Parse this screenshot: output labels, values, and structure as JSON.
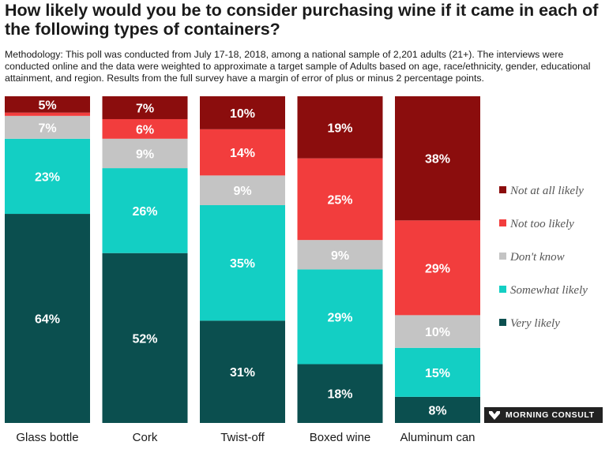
{
  "title": "How likely would you be to consider purchasing wine if it came in each of the following types of containers?",
  "methodology": "Methodology: This poll was conducted from July 17-18, 2018, among a national sample of 2,201 adults (21+). The interviews were conducted online and the data were weighted to approximate a target sample of Adults based on age, race/ethnicity, gender, educational attainment, and region. Results from the full survey have a margin of error of plus or minus 2 percentage points.",
  "brand": "MORNING CONSULT",
  "chart_data": {
    "type": "bar",
    "stacked": true,
    "percent": true,
    "categories": [
      "Glass bottle",
      "Cork",
      "Twist-off",
      "Boxed wine",
      "Aluminum can"
    ],
    "series": [
      {
        "name": "Very likely",
        "color": "#0b4f4f",
        "values": [
          64,
          52,
          31,
          18,
          8
        ]
      },
      {
        "name": "Somewhat likely",
        "color": "#13cfc4",
        "values": [
          23,
          26,
          35,
          29,
          15
        ]
      },
      {
        "name": "Don't know",
        "color": "#c4c4c4",
        "values": [
          7,
          9,
          9,
          9,
          10
        ]
      },
      {
        "name": "Not too likely",
        "color": "#f23d3d",
        "values": [
          1,
          6,
          14,
          25,
          29
        ]
      },
      {
        "name": "Not at all likely",
        "color": "#8b0d0d",
        "values": [
          5,
          7,
          10,
          19,
          38
        ]
      }
    ],
    "legend_position": "right",
    "legend_order": [
      "Not at all likely",
      "Not too likely",
      "Don't know",
      "Somewhat likely",
      "Very likely"
    ],
    "ylim": [
      0,
      100
    ],
    "grid": false
  }
}
